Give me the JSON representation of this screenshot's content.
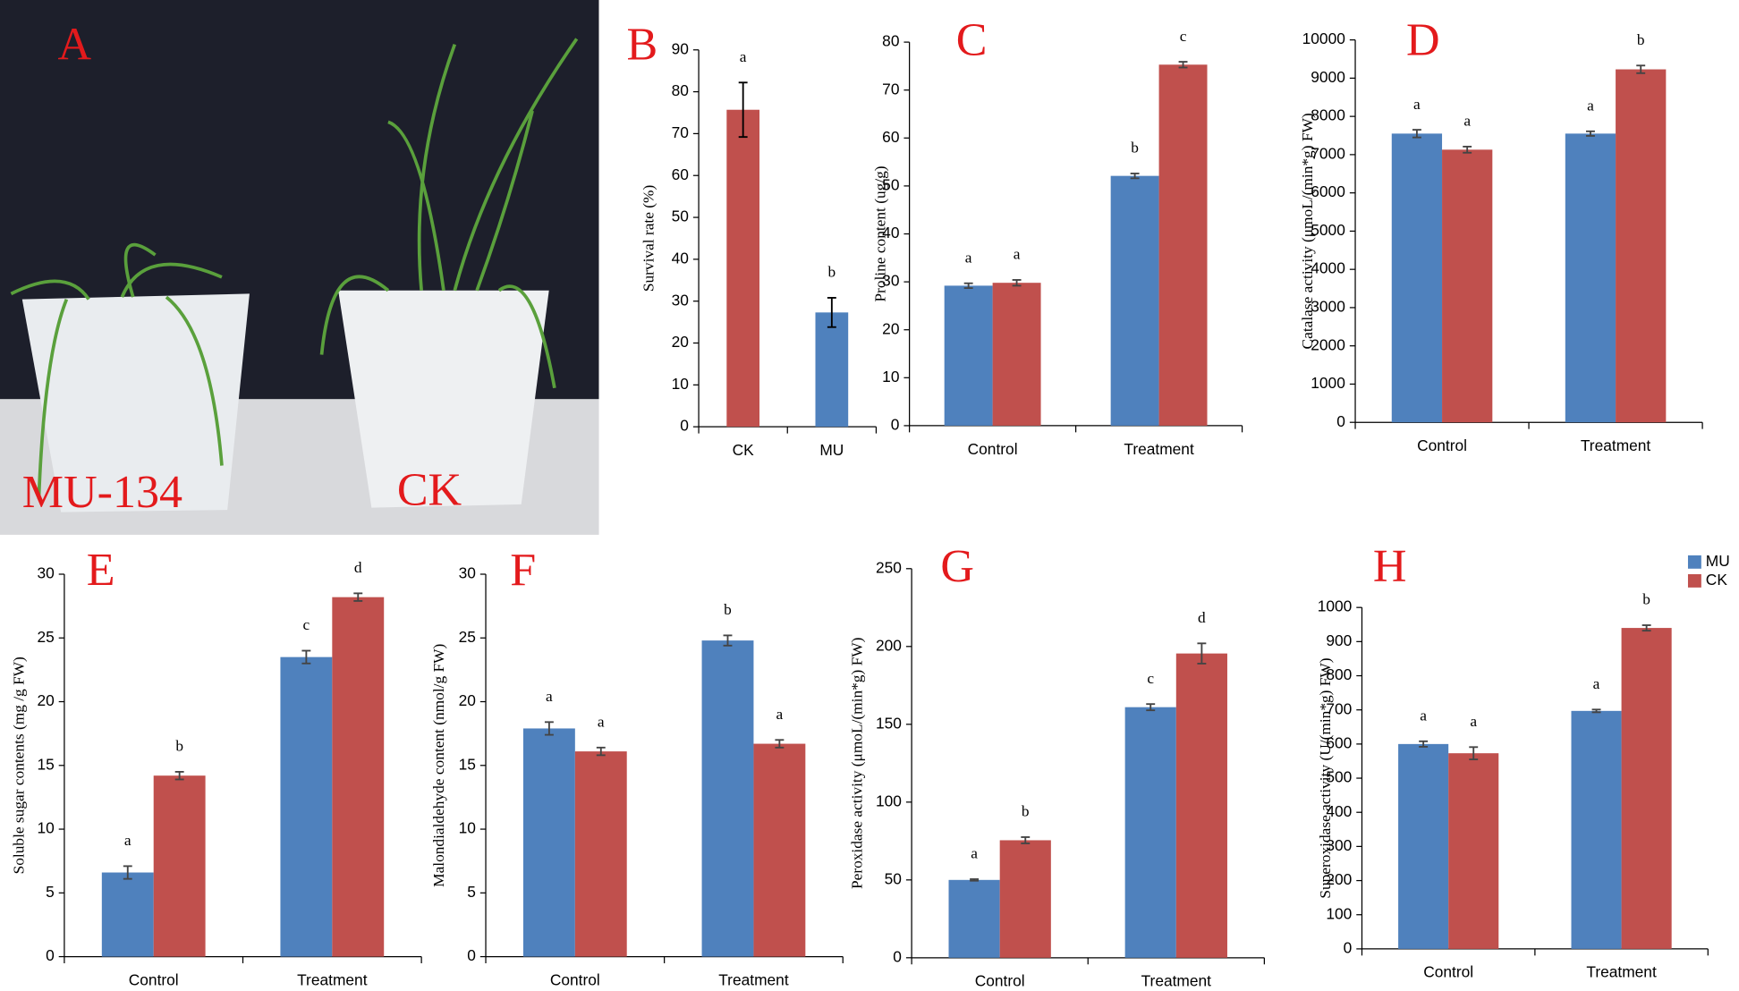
{
  "photo": {
    "panel": "A",
    "labels": [
      "MU-134",
      "CK"
    ]
  },
  "chart_data": [
    {
      "type": "bar",
      "panel": "B",
      "ylabel": "Survival rate (%)",
      "categories": [
        "CK",
        "MU"
      ],
      "values": [
        75.7,
        27.3
      ],
      "errors": [
        6.5,
        3.5
      ],
      "labels": [
        "a",
        "b"
      ],
      "colors": [
        "#c0504d",
        "#4f81bd"
      ],
      "ylim": [
        0,
        90
      ],
      "yticks": [
        0,
        10,
        20,
        30,
        40,
        50,
        60,
        70,
        80,
        90
      ],
      "legend": false
    },
    {
      "type": "grouped-bar",
      "panel": "C",
      "ylabel": "Proline content (ug/g)",
      "categories": [
        "Control",
        "Treatment"
      ],
      "series": [
        {
          "name": "MU",
          "color": "#4f81bd",
          "values": [
            29.2,
            52.1
          ],
          "errors": [
            0.5,
            0.5
          ],
          "labels": [
            "a",
            "b"
          ]
        },
        {
          "name": "CK",
          "color": "#c0504d",
          "values": [
            29.8,
            75.3
          ],
          "errors": [
            0.6,
            0.6
          ],
          "labels": [
            "a",
            "c"
          ]
        }
      ],
      "ylim": [
        0,
        80
      ],
      "yticks": [
        0,
        10,
        20,
        30,
        40,
        50,
        60,
        70,
        80
      ],
      "legend": false
    },
    {
      "type": "grouped-bar",
      "panel": "D",
      "ylabel": "Catalase activity (μmoL/(min*g) FW)",
      "categories": [
        "Control",
        "Treatment"
      ],
      "series": [
        {
          "name": "MU",
          "color": "#4f81bd",
          "values": [
            7550,
            7550
          ],
          "errors": [
            100,
            60
          ],
          "labels": [
            "a",
            "a"
          ]
        },
        {
          "name": "CK",
          "color": "#c0504d",
          "values": [
            7130,
            9230
          ],
          "errors": [
            80,
            100
          ],
          "labels": [
            "a",
            "b"
          ]
        }
      ],
      "ylim": [
        0,
        10000
      ],
      "yticks": [
        0,
        1000,
        2000,
        3000,
        4000,
        5000,
        6000,
        7000,
        8000,
        9000,
        10000
      ],
      "legend": false
    },
    {
      "type": "grouped-bar",
      "panel": "E",
      "ylabel": "Soluble sugar contents (mg /g FW)",
      "categories": [
        "Control",
        "Treatment"
      ],
      "series": [
        {
          "name": "MU",
          "color": "#4f81bd",
          "values": [
            6.6,
            23.5
          ],
          "errors": [
            0.5,
            0.5
          ],
          "labels": [
            "a",
            "c"
          ]
        },
        {
          "name": "CK",
          "color": "#c0504d",
          "values": [
            14.2,
            28.2
          ],
          "errors": [
            0.3,
            0.3
          ],
          "labels": [
            "b",
            "d"
          ]
        }
      ],
      "ylim": [
        0,
        30
      ],
      "yticks": [
        0,
        5,
        10,
        15,
        20,
        25,
        30
      ],
      "legend": false
    },
    {
      "type": "grouped-bar",
      "panel": "F",
      "ylabel": "Malondialdehyde content (nmol/g FW)",
      "categories": [
        "Control",
        "Treatment"
      ],
      "series": [
        {
          "name": "MU",
          "color": "#4f81bd",
          "values": [
            17.9,
            24.8
          ],
          "errors": [
            0.5,
            0.4
          ],
          "labels": [
            "a",
            "b"
          ]
        },
        {
          "name": "CK",
          "color": "#c0504d",
          "values": [
            16.1,
            16.7
          ],
          "errors": [
            0.3,
            0.3
          ],
          "labels": [
            "a",
            "a"
          ]
        }
      ],
      "ylim": [
        0,
        30
      ],
      "yticks": [
        0,
        5,
        10,
        15,
        20,
        25,
        30
      ],
      "legend": false
    },
    {
      "type": "grouped-bar",
      "panel": "G",
      "ylabel": "Peroxidase activity (μmoL/(min*g) FW)",
      "categories": [
        "Control",
        "Treatment"
      ],
      "series": [
        {
          "name": "MU",
          "color": "#4f81bd",
          "values": [
            50,
            161
          ],
          "errors": [
            0.5,
            2
          ],
          "labels": [
            "a",
            "c"
          ]
        },
        {
          "name": "CK",
          "color": "#c0504d",
          "values": [
            75.5,
            195.5
          ],
          "errors": [
            2,
            6.5
          ],
          "labels": [
            "b",
            "d"
          ]
        }
      ],
      "ylim": [
        0,
        250
      ],
      "yticks": [
        0,
        50,
        100,
        150,
        200,
        250
      ],
      "legend": false
    },
    {
      "type": "grouped-bar",
      "panel": "H",
      "ylabel": "Superoxidase activity (U/(min*g) FW)",
      "categories": [
        "Control",
        "Treatment"
      ],
      "series": [
        {
          "name": "MU",
          "color": "#4f81bd",
          "values": [
            600,
            697
          ],
          "errors": [
            8,
            4
          ],
          "labels": [
            "a",
            "a"
          ]
        },
        {
          "name": "CK",
          "color": "#c0504d",
          "values": [
            573,
            940
          ],
          "errors": [
            18,
            8
          ],
          "labels": [
            "a",
            "b"
          ]
        }
      ],
      "ylim": [
        0,
        1000
      ],
      "yticks": [
        0,
        100,
        200,
        300,
        400,
        500,
        600,
        700,
        800,
        900,
        1000
      ],
      "legend": true
    }
  ]
}
